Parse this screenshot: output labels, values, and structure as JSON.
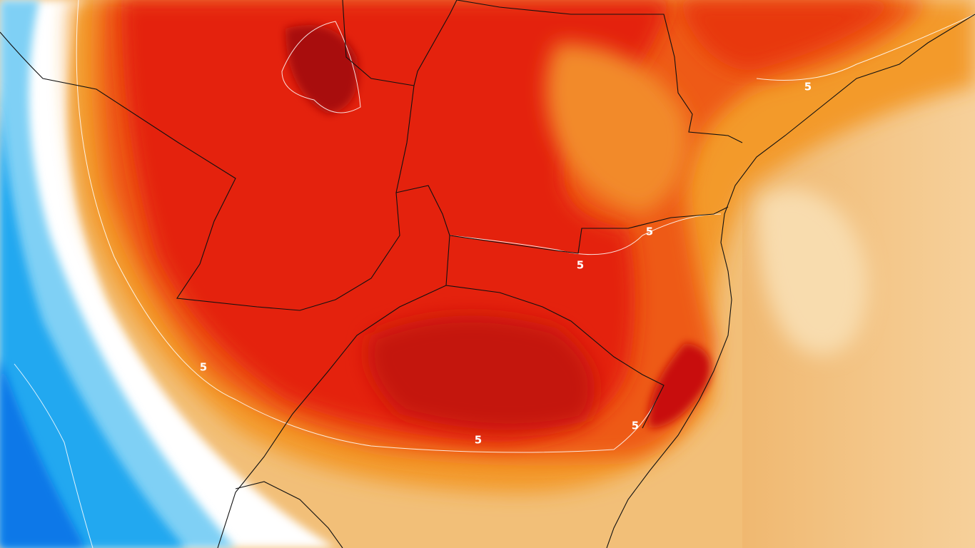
{
  "map": {
    "contour_labels": [
      5,
      5,
      5,
      5,
      5,
      5
    ]
  }
}
